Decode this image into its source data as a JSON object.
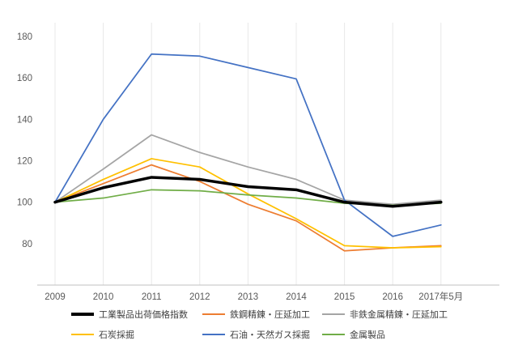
{
  "chart_data": {
    "type": "line",
    "title": "",
    "xlabel": "",
    "ylabel": "",
    "categories": [
      "2009",
      "2010",
      "2011",
      "2012",
      "2013",
      "2014",
      "2015",
      "2016",
      "2017年5月"
    ],
    "series": [
      {
        "name": "工業製品出荷価格指数",
        "color": "#000000",
        "stroke_width": 3.5,
        "values": [
          100,
          107,
          112,
          111,
          107.5,
          106,
          100,
          98,
          100
        ]
      },
      {
        "name": "鉄鋼精錬・圧延加工",
        "color": "#ED7D31",
        "stroke_width": 1.75,
        "values": [
          100,
          109,
          118,
          110,
          99,
          91,
          76.5,
          78,
          79
        ]
      },
      {
        "name": "非鉄金属精錬・圧延加工",
        "color": "#A5A5A5",
        "stroke_width": 1.75,
        "values": [
          100,
          116,
          132.5,
          124,
          117,
          111,
          101,
          99,
          101
        ]
      },
      {
        "name": "石炭採掘",
        "color": "#FFC000",
        "stroke_width": 1.75,
        "values": [
          100,
          111,
          121,
          117,
          104,
          92,
          79,
          78,
          78.5
        ]
      },
      {
        "name": "石油・天然ガス採掘",
        "color": "#4472C4",
        "stroke_width": 1.75,
        "values": [
          100,
          140,
          171.5,
          170.5,
          165,
          159.5,
          101,
          83.5,
          89
        ]
      },
      {
        "name": "金属製品",
        "color": "#70AD47",
        "stroke_width": 1.75,
        "values": [
          100,
          102,
          106,
          105.5,
          103.5,
          102,
          99.5,
          98.5,
          99.5
        ]
      }
    ],
    "ylim": [
      60,
      180
    ],
    "yticks": [
      80,
      100,
      120,
      140,
      160,
      180
    ],
    "grid": "vertical-only",
    "legend_position": "bottom",
    "colors": {
      "axis_line": "#c0c0c0",
      "gridline": "#e8e8e8",
      "tick_label": "#595959"
    }
  }
}
